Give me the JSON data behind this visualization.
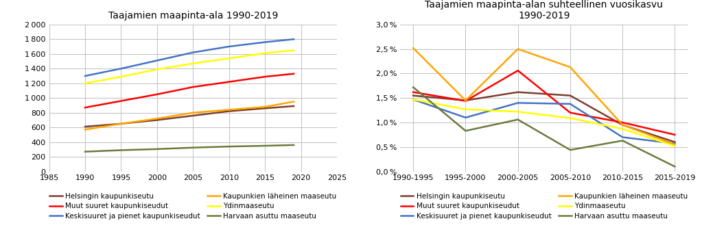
{
  "chart1": {
    "title": "Taajamien maapinta-ala 1990-2019",
    "x": [
      1990,
      1995,
      2000,
      2005,
      2010,
      2015,
      2019
    ],
    "series": {
      "Helsingin kaupunkiseutu": [
        610,
        650,
        700,
        760,
        820,
        860,
        890
      ],
      "Muut suuret kaupunkiseudut": [
        870,
        960,
        1050,
        1150,
        1220,
        1290,
        1330
      ],
      "Keskisuuret ja pienet kaupunkiseudut": [
        1300,
        1400,
        1510,
        1620,
        1700,
        1760,
        1800
      ],
      "Kaupunkien läheinen maaseutu": [
        570,
        650,
        720,
        800,
        840,
        880,
        950
      ],
      "Ydinmaaseutu": [
        1200,
        1290,
        1390,
        1470,
        1540,
        1610,
        1650
      ],
      "Harvaan asuttu maaseutu": [
        270,
        290,
        305,
        325,
        340,
        350,
        360
      ]
    },
    "colors": {
      "Helsingin kaupunkiseutu": "#7B3F2F",
      "Muut suuret kaupunkiseudut": "#FF0000",
      "Keskisuuret ja pienet kaupunkiseudut": "#4472C4",
      "Kaupunkien läheinen maaseutu": "#FFA500",
      "Ydinmaaseutu": "#FFFF00",
      "Harvaan asuttu maaseutu": "#6B7B3A"
    },
    "xlim": [
      1985,
      2025
    ],
    "ylim": [
      0,
      2000
    ],
    "yticks": [
      0,
      200,
      400,
      600,
      800,
      1000,
      1200,
      1400,
      1600,
      1800,
      2000
    ],
    "xticks": [
      1985,
      1990,
      1995,
      2000,
      2005,
      2010,
      2015,
      2020,
      2025
    ]
  },
  "chart2": {
    "title": "Taajamien maapinta-alan suhteellinen vuosikasvu\n1990-2019",
    "x_labels": [
      "1990-1995",
      "1995-2000",
      "2000-2005",
      "2005-2010",
      "2010-2015",
      "2015-2019"
    ],
    "series": {
      "Helsingin kaupunkiseutu": [
        1.55,
        1.45,
        1.62,
        1.55,
        0.95,
        0.6
      ],
      "Muut suuret kaupunkiseudut": [
        1.62,
        1.44,
        2.06,
        1.2,
        1.0,
        0.75
      ],
      "Keskisuuret ja pienet kaupunkiseudut": [
        1.47,
        1.1,
        1.4,
        1.38,
        0.7,
        0.57
      ],
      "Kaupunkien läheinen maaseutu": [
        2.52,
        1.45,
        2.5,
        2.13,
        0.95,
        0.55
      ],
      "Ydinmaaseutu": [
        1.47,
        1.27,
        1.22,
        1.09,
        0.87,
        0.52
      ],
      "Harvaan asuttu maaseutu": [
        1.72,
        0.83,
        1.06,
        0.44,
        0.63,
        0.1
      ]
    },
    "colors": {
      "Helsingin kaupunkiseutu": "#7B3F2F",
      "Muut suuret kaupunkiseudut": "#FF0000",
      "Keskisuuret ja pienet kaupunkiseudut": "#4472C4",
      "Kaupunkien läheinen maaseutu": "#FFA500",
      "Ydinmaaseutu": "#FFFF00",
      "Harvaan asuttu maaseutu": "#6B7B3A"
    },
    "ylim": [
      0.0,
      3.0
    ],
    "yticks": [
      0.0,
      0.5,
      1.0,
      1.5,
      2.0,
      2.5,
      3.0
    ]
  },
  "legend_order": [
    "Helsingin kaupunkiseutu",
    "Muut suuret kaupunkiseudut",
    "Keskisuuret ja pienet kaupunkiseudut",
    "Kaupunkien läheinen maaseutu",
    "Ydinmaaseutu",
    "Harvaan asuttu maaseutu"
  ],
  "background_color": "#FFFFFF",
  "grid_color": "#C0C0C0",
  "linewidth": 1.8,
  "title_fontsize": 10,
  "tick_fontsize": 8,
  "legend_fontsize": 7.5
}
